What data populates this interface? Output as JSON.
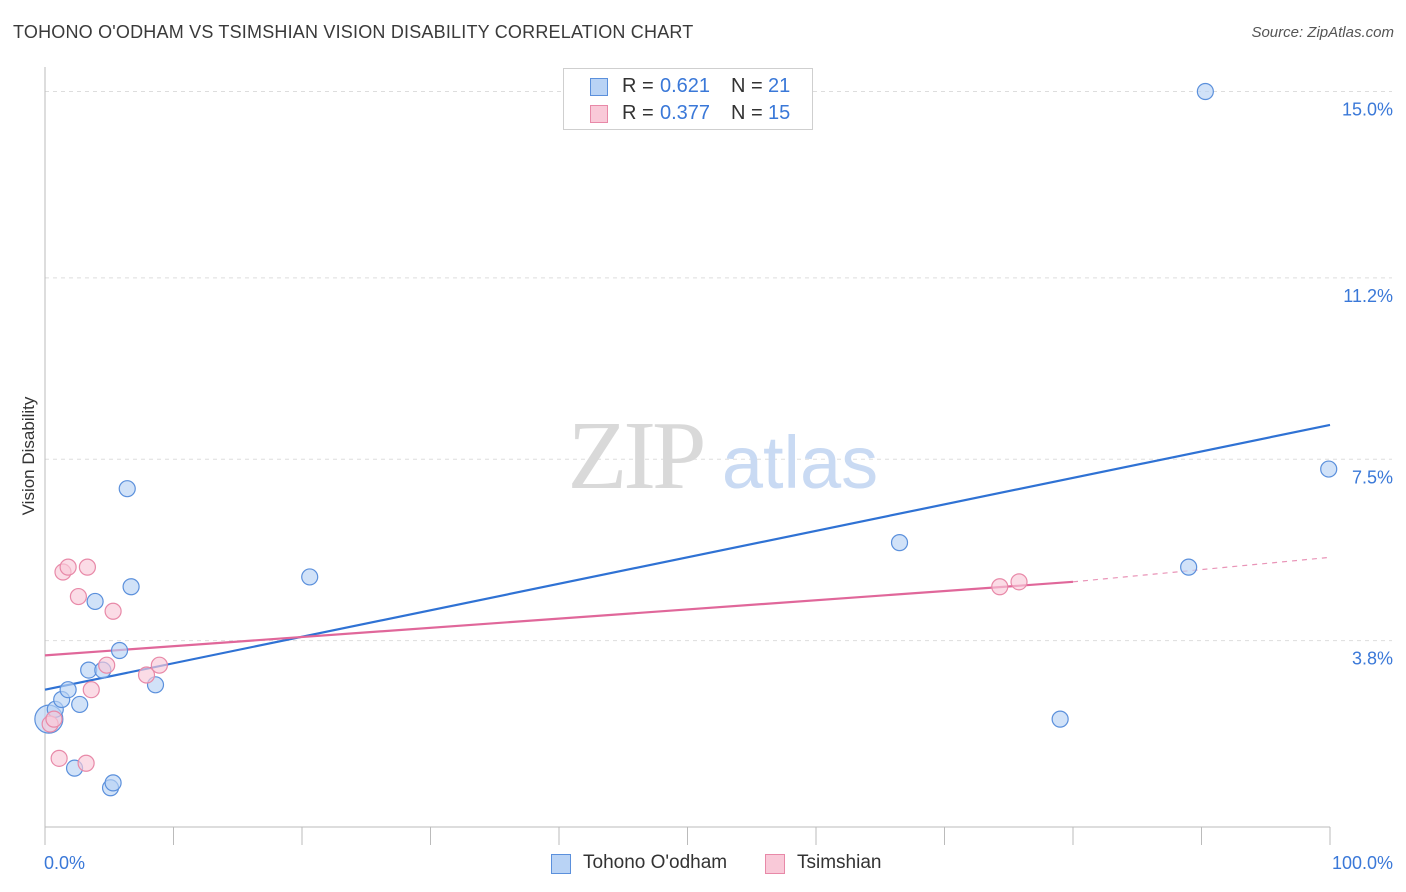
{
  "title": "TOHONO O'ODHAM VS TSIMSHIAN VISION DISABILITY CORRELATION CHART",
  "source": "Source: ZipAtlas.com",
  "watermark": {
    "zip": "ZIP",
    "atlas": "atlas"
  },
  "legend_top": {
    "rows": [
      {
        "r_label": "R =",
        "r_value": "0.621",
        "n_label": "N =",
        "n_value": "21"
      },
      {
        "r_label": "R =",
        "r_value": "0.377",
        "n_label": "N =",
        "n_value": "15"
      }
    ]
  },
  "legend_bottom": [
    "Tohono O'odham",
    "Tsimshian"
  ],
  "colors": {
    "blue_fill": "#b9d3f5",
    "blue_stroke": "#5b90dc",
    "blue_line": "#2f72d4",
    "pink_fill": "#f9c9d8",
    "pink_stroke": "#e889a8",
    "pink_line": "#e0679a",
    "axis_text": "#3a78d8",
    "grid": "#dddddd"
  },
  "chart_data": {
    "type": "scatter",
    "title": "TOHONO O'ODHAM VS TSIMSHIAN VISION DISABILITY CORRELATION CHART",
    "xlabel": "",
    "ylabel": "Vision Disability",
    "xlim": [
      0,
      100
    ],
    "ylim": [
      0,
      15.5
    ],
    "x_tick_labels": [
      "0.0%",
      "100.0%"
    ],
    "y_ticks": [
      3.8,
      7.5,
      11.2,
      15.0
    ],
    "y_tick_labels": [
      "3.8%",
      "7.5%",
      "11.2%",
      "15.0%"
    ],
    "series": [
      {
        "name": "Tohono O'odham",
        "r": 0.621,
        "n": 21,
        "points": [
          {
            "x": 0.3,
            "y": 2.2,
            "size": 2
          },
          {
            "x": 0.8,
            "y": 2.4,
            "size": 1
          },
          {
            "x": 1.3,
            "y": 2.6,
            "size": 1
          },
          {
            "x": 1.8,
            "y": 2.8,
            "size": 1
          },
          {
            "x": 2.3,
            "y": 1.2,
            "size": 1
          },
          {
            "x": 2.7,
            "y": 2.5,
            "size": 1
          },
          {
            "x": 3.4,
            "y": 3.2,
            "size": 1
          },
          {
            "x": 3.9,
            "y": 4.6,
            "size": 1
          },
          {
            "x": 4.5,
            "y": 3.2,
            "size": 1
          },
          {
            "x": 5.1,
            "y": 0.8,
            "size": 1
          },
          {
            "x": 5.3,
            "y": 0.9,
            "size": 1
          },
          {
            "x": 5.8,
            "y": 3.6,
            "size": 1
          },
          {
            "x": 6.4,
            "y": 6.9,
            "size": 1
          },
          {
            "x": 6.7,
            "y": 4.9,
            "size": 1
          },
          {
            "x": 8.6,
            "y": 2.9,
            "size": 1
          },
          {
            "x": 20.6,
            "y": 5.1,
            "size": 1
          },
          {
            "x": 66.5,
            "y": 5.8,
            "size": 1
          },
          {
            "x": 79.0,
            "y": 2.2,
            "size": 1
          },
          {
            "x": 89.0,
            "y": 5.3,
            "size": 1
          },
          {
            "x": 90.3,
            "y": 15.0,
            "size": 1
          },
          {
            "x": 99.9,
            "y": 7.3,
            "size": 1
          }
        ],
        "trendline": {
          "x": [
            0,
            100
          ],
          "y": [
            2.8,
            8.2
          ]
        }
      },
      {
        "name": "Tsimshian",
        "r": 0.377,
        "n": 15,
        "points": [
          {
            "x": 0.4,
            "y": 2.1,
            "size": 1
          },
          {
            "x": 0.7,
            "y": 2.2,
            "size": 1
          },
          {
            "x": 1.1,
            "y": 1.4,
            "size": 1
          },
          {
            "x": 1.4,
            "y": 5.2,
            "size": 1
          },
          {
            "x": 1.8,
            "y": 5.3,
            "size": 1
          },
          {
            "x": 2.6,
            "y": 4.7,
            "size": 1
          },
          {
            "x": 3.2,
            "y": 1.3,
            "size": 1
          },
          {
            "x": 3.3,
            "y": 5.3,
            "size": 1
          },
          {
            "x": 3.6,
            "y": 2.8,
            "size": 1
          },
          {
            "x": 4.8,
            "y": 3.3,
            "size": 1
          },
          {
            "x": 5.3,
            "y": 4.4,
            "size": 1
          },
          {
            "x": 7.9,
            "y": 3.1,
            "size": 1
          },
          {
            "x": 8.9,
            "y": 3.3,
            "size": 1
          },
          {
            "x": 74.3,
            "y": 4.9,
            "size": 1
          },
          {
            "x": 75.8,
            "y": 5.0,
            "size": 1
          }
        ],
        "trendline": {
          "x": [
            0,
            80
          ],
          "y": [
            3.5,
            5.0
          ]
        },
        "trendline_dashed": {
          "x": [
            80,
            100
          ],
          "y": [
            5.0,
            5.5
          ]
        }
      }
    ],
    "legend": [
      "Tohono O'odham",
      "Tsimshian"
    ],
    "grid": true
  }
}
